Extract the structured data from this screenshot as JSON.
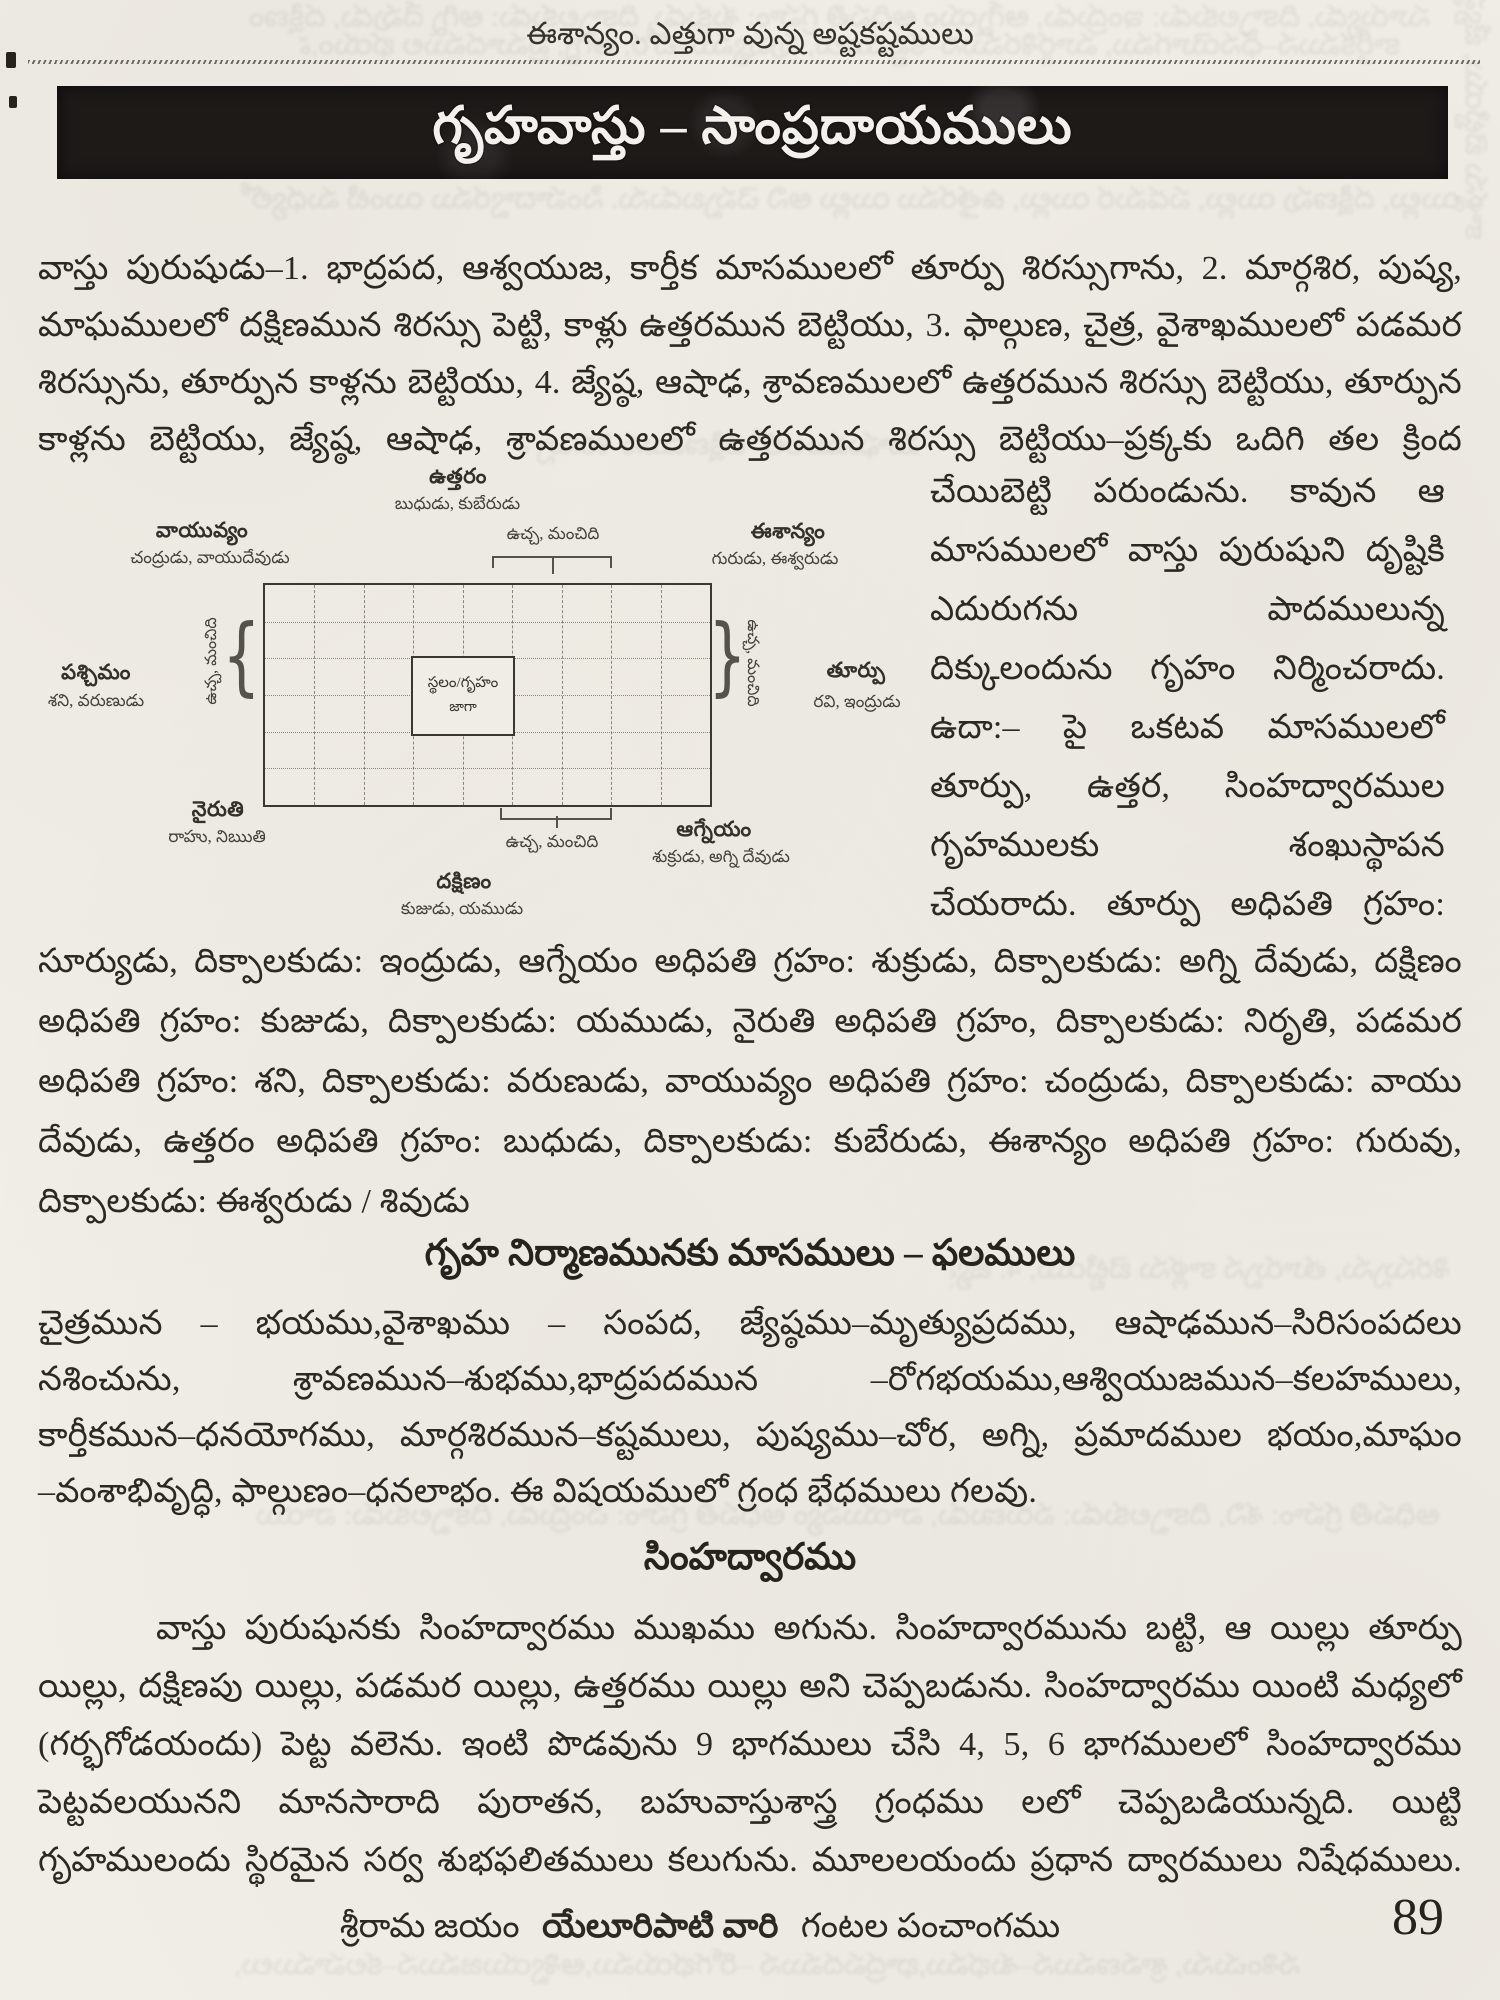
{
  "colors": {
    "paper": "#f1eee7",
    "ink": "#2c2925",
    "banner_bg": "#1d1a18",
    "banner_text": "#f3f1ec"
  },
  "page": {
    "header_note": "ఈశాన్యం. ఎత్తుగా వున్న అష్టకష్టములు",
    "banner_title": "గృహవాస్తు – సాంప్రదాయములు"
  },
  "intro": {
    "lines": [
      "వాస్తు పురుషుడు–1. భాద్రపద, ఆశ్వయుజ, కార్తీక మాసములలో తూర్పు శిరస్సుగాను, 2. మార్గశిర, పుష్య,",
      "మాఘములలో దక్షిణమున శిరస్సు పెట్టి, కాళ్లు ఉత్తరమున బెట్టియు, 3. ఫాల్గుణ, చైత్ర, వైశాఖములలో పడమర",
      "శిరస్సును, తూర్పున కాళ్లను బెట్టియు, 4. జ్యేష్ఠ, ఆషాఢ, శ్రావణములలో ఉత్తరమున శిరస్సు బెట్టియు, తూర్పున",
      "కాళ్లను బెట్టియు, జ్యేష్ఠ, ఆషాఢ, శ్రావణములలో ఉత్తరమున శిరస్సు బెట్టియు–ప్రక్కకు ఒదిగి తల క్రింద"
    ]
  },
  "wrap_right": {
    "lines": [
      "చేయిబెట్టి పరుండును. కావున ఆ",
      "మాసములలో వాస్తు పురుషుని దృష్టికి",
      "ఎదురుగను పాదములున్న",
      "దిక్కులందును గృహం నిర్మించరాదు.",
      "ఉదా:– పై ఒకటవ మాసములలో",
      "తూర్పు, ఉత్తర, సింహద్వారముల",
      "గృహములకు శంఖుస్థాపన",
      "చేయరాదు. తూర్పు అధిపతి గ్రహం:"
    ]
  },
  "diagram": {
    "north_label": "ఉత్తరం",
    "north_deities": "బుధుడు, కుబేరుడు",
    "northwest_label": "వాయువ్యం",
    "northwest_deities": "చంద్రుడు, వాయుదేవుడు",
    "northeast_label": "ఈశాన్యం",
    "northeast_deities": "గురుడు, ఈశ్వరుడు",
    "west_label": "పశ్చిమం",
    "west_deities": "శని, వరుణుడు",
    "east_label": "తూర్పు",
    "east_deities": "రవి, ఇంద్రుడు",
    "southwest_label": "నైరుతి",
    "southwest_deities": "రాహు, నిఋతి",
    "south_label": "దక్షిణం",
    "south_deities": "కుజుడు, యముడు",
    "southeast_label": "ఆగ్నేయం",
    "southeast_deities": "శుక్రుడు, అగ్ని దేవుడు",
    "center_box_line1": "స్థలం/గృహం",
    "center_box_line2": "జాగా",
    "bracket_top": "ఉచ్చ, మంచిది",
    "bracket_left": "ఉచ్చ, మంచిది",
    "bracket_right": "ఉచ్చ, మంచిది",
    "bracket_bottom": "ఉచ్చ, మంచిది"
  },
  "adhipati": {
    "lines": [
      "సూర్యుడు, దిక్పాలకుడు: ఇంద్రుడు, ఆగ్నేయం అధిపతి గ్రహం: శుక్రుడు, దిక్పాలకుడు: అగ్ని దేవుడు, దక్షిణం",
      "అధిపతి గ్రహం: కుజుడు, దిక్పాలకుడు: యముడు, నైరుతి అధిపతి గ్రహం, దిక్పాలకుడు: నిరృతి, పడమర",
      "అధిపతి గ్రహం: శని, దిక్పాలకుడు: వరుణుడు, వాయువ్యం అధిపతి గ్రహం: చంద్రుడు, దిక్పాలకుడు: వాయు",
      "దేవుడు, ఉత్తరం అధిపతి గ్రహం: బుధుడు, దిక్పాలకుడు: కుబేరుడు, ఈశాన్యం అధిపతి గ్రహం: గురువు,",
      "దిక్పాలకుడు: ఈశ్వరుడు / శివుడు"
    ]
  },
  "months": {
    "heading": "గృహ నిర్మాణమునకు మాసములు – ఫలములు",
    "lines": [
      "చైత్రమున – భయము,వైశాఖము – సంపద, జ్యేష్ఠము–మృత్యుప్రదము, ఆషాఢమున–సిరిసంపదలు",
      "నశించును, శ్రావణమున–శుభము,భాద్రపదమున –రోగభయము,ఆశ్వియుజమున–కలహములు,",
      "కార్తీకమున–ధనయోగము, మార్గశిరమున–కష్టములు, పుష్యము–చోర, అగ్ని, ప్రమాదముల భయం,మాఘం",
      "–వంశాభివృద్ధి, ఫాల్గుణం–ధనలాభం. ఈ విషయములో గ్రంధ భేధములు గలవు."
    ]
  },
  "simhadwaram": {
    "heading": "సింహద్వారము",
    "lines": [
      "వాస్తు పురుషునకు సింహద్వారము ముఖము అగును. సింహద్వారమును బట్టి, ఆ యిల్లు తూర్పు",
      "యిల్లు, దక్షిణపు యిల్లు, పడమర యిల్లు, ఉత్తరము యిల్లు అని చెప్పబడును. సింహద్వారము యింటి మధ్యలో",
      "(గర్భగోడయందు) పెట్ట వలెను. ఇంటి పొడవును 9 భాగములు చేసి 4, 5, 6 భాగములలో సింహద్వారము",
      "పెట్టవలయునని మానసారాది పురాతన, బహువాస్తుశాస్త్ర గ్రంధము లలో చెప్పబడియున్నది. యిట్టి",
      "గృహములందు స్థిరమైన సర్వ శుభఫలితములు కలుగును. మూలలయందు ప్రధాన ద్వారములు నిషేధములు."
    ]
  },
  "footer": {
    "left": "శ్రీరామ జయం",
    "publisher": "యేలూరిపాటి వారి",
    "right": "గంటల పంచాంగము",
    "page_number": "89"
  }
}
